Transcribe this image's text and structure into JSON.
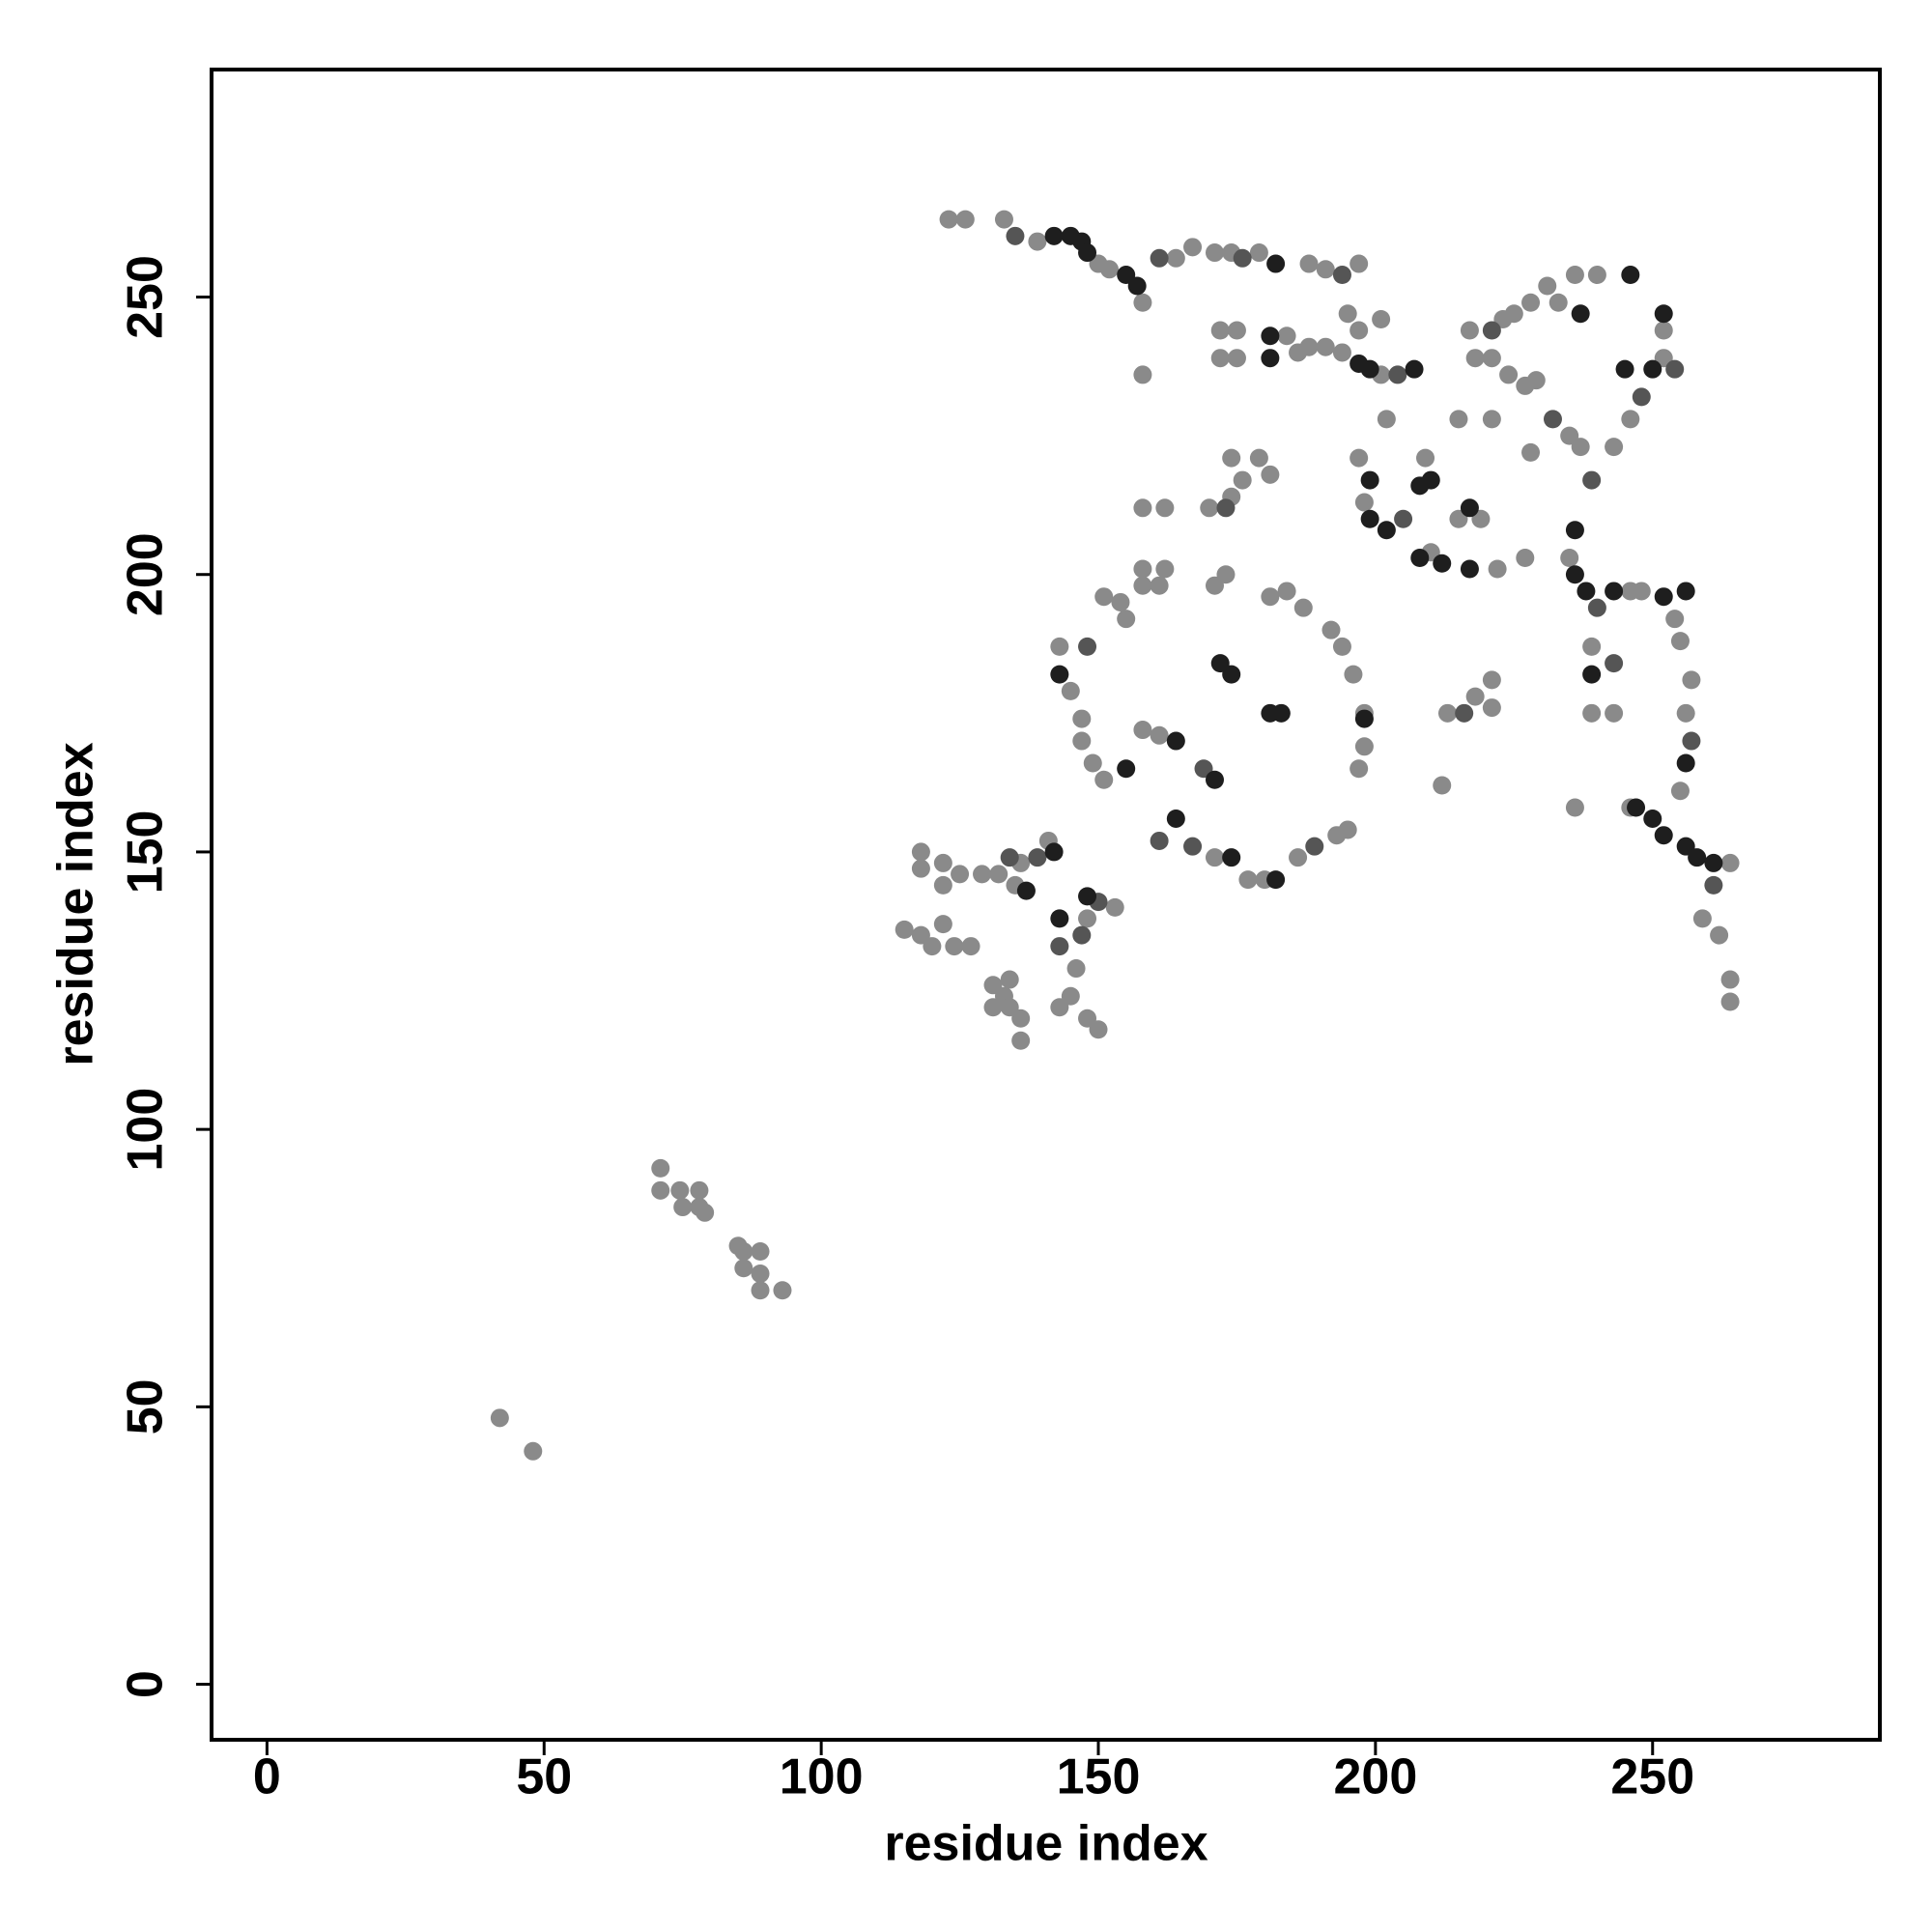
{
  "chart_data": {
    "type": "scatter",
    "x_label": "residue index",
    "y_label": "residue index",
    "xlim": [
      -10,
      291
    ],
    "ylim": [
      -10,
      291
    ],
    "xticks": [
      0,
      50,
      100,
      150,
      200,
      250
    ],
    "yticks": [
      0,
      50,
      100,
      150,
      200,
      250
    ],
    "grid": false,
    "series": [
      {
        "color": "#8a8a8a",
        "x": [
          42,
          48,
          71,
          71,
          74.5,
          78,
          75,
          78,
          79,
          85,
          86,
          89,
          86,
          89,
          89,
          93,
          115,
          118,
          118,
          122,
          122,
          118,
          120,
          122,
          124,
          127,
          125,
          129,
          132,
          135,
          136,
          141,
          131,
          133,
          134,
          136,
          136,
          134,
          131,
          146,
          145,
          148,
          150,
          143,
          148,
          153,
          151,
          154,
          155,
          143,
          145,
          147,
          147,
          149,
          151,
          158,
          161,
          171,
          177,
          180,
          186,
          193,
          195,
          197,
          198,
          196,
          194,
          192,
          187,
          184,
          181,
          171,
          173,
          198,
          174,
          176,
          174,
          179,
          181,
          170,
          158,
          162,
          158,
          162,
          158,
          161,
          123,
          126,
          133,
          139,
          150,
          152,
          158,
          158,
          164,
          167,
          171,
          174,
          179,
          188,
          191,
          197,
          195,
          197,
          172,
          175,
          172,
          175,
          184,
          186,
          188,
          191,
          194,
          201,
          201,
          197,
          198,
          209,
          210,
          215,
          219,
          222,
          227,
          215,
          202,
          217,
          223,
          225,
          228,
          231,
          233,
          236,
          240,
          218,
          221,
          224,
          227,
          229,
          235,
          237,
          243,
          246,
          252,
          252,
          221,
          228,
          235,
          239,
          239,
          243,
          246,
          248,
          254,
          255,
          257,
          256,
          255,
          259,
          262,
          264,
          264,
          264,
          236,
          246,
          213,
          218,
          221,
          212,
          221
        ],
        "y": [
          48,
          42,
          93,
          89,
          89,
          89,
          86,
          86,
          85,
          79,
          78,
          78,
          75,
          74,
          71,
          71,
          136,
          150,
          147,
          148,
          144,
          135,
          133,
          137,
          133,
          133,
          146,
          146,
          146,
          144,
          148,
          152,
          126,
          124,
          122,
          120,
          116,
          127,
          122,
          129,
          124,
          120,
          118,
          122,
          138,
          140,
          196,
          195,
          192,
          187,
          179,
          174,
          170,
          166,
          163,
          172,
          171,
          149,
          145,
          145,
          149,
          153,
          154,
          165,
          169,
          182,
          187,
          190,
          194,
          197,
          196,
          198,
          200,
          175,
          221,
          217,
          214,
          221,
          218,
          212,
          212,
          212,
          201,
          201,
          198,
          198,
          264,
          264,
          264,
          260,
          256,
          255,
          249,
          236,
          257,
          259,
          258,
          258,
          258,
          256,
          255,
          256,
          247,
          244,
          244,
          244,
          239,
          239,
          243,
          240,
          241,
          241,
          240,
          236,
          246,
          221,
          213,
          221,
          204,
          210,
          210,
          201,
          203,
          228,
          228,
          244,
          246,
          247,
          249,
          252,
          249,
          254,
          254,
          239,
          239,
          236,
          234,
          235,
          225,
          223,
          223,
          228,
          239,
          244,
          228,
          222,
          203,
          187,
          175,
          175,
          197,
          197,
          192,
          188,
          181,
          175,
          161,
          138,
          135,
          127,
          123,
          148,
          158,
          158,
          175,
          178,
          181,
          162,
          176
        ]
      },
      {
        "color": "#555555",
        "x": [
          139,
          134,
          143,
          169,
          243,
          257,
          216,
          150,
          147,
          148,
          161,
          167,
          189,
          135,
          161,
          194,
          204,
          205,
          232,
          239,
          248,
          254,
          261,
          173,
          176,
          240,
          221
        ],
        "y": [
          149,
          149,
          133,
          165,
          184,
          170,
          175,
          141,
          135,
          187,
          152,
          151,
          151,
          261,
          257,
          254,
          236,
          210,
          228,
          217,
          232,
          237,
          144,
          212,
          257,
          194,
          244
        ]
      },
      {
        "color": "#1e1e1e",
        "x": [
          142,
          137,
          143,
          148,
          143,
          155,
          164,
          164,
          174,
          182,
          198,
          171,
          174,
          172,
          181,
          183,
          145,
          147,
          148,
          155,
          157,
          142,
          182,
          181,
          181,
          197,
          199,
          207,
          199,
          199,
          202,
          208,
          210,
          208,
          212,
          217,
          217,
          237,
          246,
          250,
          252,
          245,
          236,
          236,
          238,
          239,
          243,
          252,
          256,
          256,
          247,
          250,
          252,
          256,
          258,
          261
        ],
        "y": [
          150,
          143,
          138,
          142,
          182,
          165,
          170,
          156,
          149,
          145,
          174,
          163,
          182,
          184,
          175,
          175,
          261,
          260,
          258,
          254,
          252,
          261,
          256,
          243,
          239,
          238,
          237,
          237,
          217,
          210,
          208,
          216,
          217,
          203,
          202,
          212,
          201,
          247,
          254,
          237,
          247,
          237,
          208,
          200,
          197,
          182,
          197,
          196,
          197,
          166,
          158,
          156,
          153,
          151,
          149,
          148
        ]
      }
    ]
  }
}
